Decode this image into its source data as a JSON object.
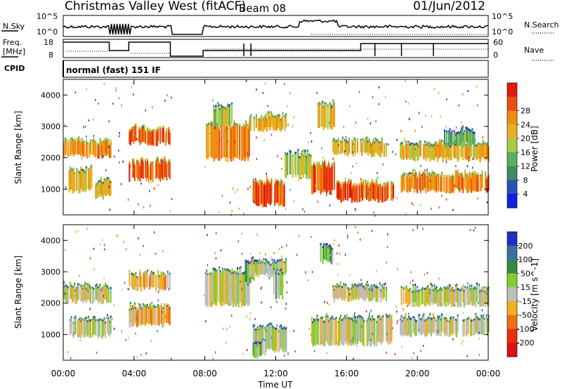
{
  "header": {
    "station": "Christmas Valley West (fitACF)",
    "beam": "Beam 08",
    "date": "01/Jun/2012"
  },
  "panels": {
    "nsky": {
      "label": "N.Sky",
      "left_ticks": [
        "10^5",
        "10^0"
      ],
      "right_label": "N.Search",
      "right_ticks": [
        "10^5",
        "10^0"
      ]
    },
    "freq": {
      "label_line1": "Freq.",
      "label_line2": "[MHz]",
      "left_ticks": [
        "18",
        "8"
      ],
      "right_label": "Nave",
      "right_ticks": [
        "60",
        "0"
      ]
    },
    "cpid": {
      "label": "CPID",
      "value": "normal (fast) 151 IF"
    }
  },
  "chart_data": [
    {
      "type": "heatmap",
      "title": "",
      "ylabel": "Slant Range [km]",
      "xlabel": "",
      "ylim": [
        180,
        4500
      ],
      "y_ticks": [
        "1000",
        "2000",
        "3000",
        "4000"
      ],
      "x_ticks": [
        "00:00",
        "04:00",
        "08:00",
        "12:00",
        "16:00",
        "20:00",
        "00:00"
      ],
      "colorbar": {
        "label": "Power [dB]",
        "ticks": [
          "4",
          "8",
          "12",
          "16",
          "20",
          "24",
          "28"
        ],
        "colors": [
          "#1020e0",
          "#2850b8",
          "#3f8a62",
          "#58b060",
          "#a8cc48",
          "#e8b020",
          "#f08c10",
          "#e85010",
          "#e21a10"
        ]
      },
      "bands": [
        {
          "t0": 0.0,
          "t1": 2.7,
          "r0": 2050,
          "r1": 2500,
          "level": 6
        },
        {
          "t0": 0.3,
          "t1": 1.6,
          "r0": 950,
          "r1": 1600,
          "level": 5
        },
        {
          "t0": 1.8,
          "t1": 2.7,
          "r0": 750,
          "r1": 1200,
          "level": 5
        },
        {
          "t0": 3.7,
          "t1": 6.0,
          "r0": 2450,
          "r1": 2900,
          "level": 7
        },
        {
          "t0": 3.7,
          "t1": 6.0,
          "r0": 1300,
          "r1": 1850,
          "level": 7
        },
        {
          "t0": 8.0,
          "t1": 10.5,
          "r0": 1950,
          "r1": 3000,
          "level": 6
        },
        {
          "t0": 8.4,
          "t1": 9.5,
          "r0": 3000,
          "r1": 3600,
          "level": 4
        },
        {
          "t0": 10.5,
          "t1": 12.6,
          "r0": 2900,
          "r1": 3300,
          "level": 5
        },
        {
          "t0": 10.7,
          "t1": 12.6,
          "r0": 500,
          "r1": 1200,
          "level": 7
        },
        {
          "t0": 12.5,
          "t1": 14.0,
          "r0": 1400,
          "r1": 2100,
          "level": 4
        },
        {
          "t0": 14.0,
          "t1": 15.3,
          "r0": 900,
          "r1": 1750,
          "level": 7
        },
        {
          "t0": 14.3,
          "t1": 15.3,
          "r0": 2950,
          "r1": 3700,
          "level": 5
        },
        {
          "t0": 15.3,
          "t1": 18.6,
          "r0": 650,
          "r1": 1150,
          "level": 7
        },
        {
          "t0": 15.2,
          "t1": 18.2,
          "r0": 2100,
          "r1": 2500,
          "level": 5
        },
        {
          "t0": 19.0,
          "t1": 24.0,
          "r0": 1950,
          "r1": 2400,
          "level": 5
        },
        {
          "t0": 19.0,
          "t1": 24.0,
          "r0": 950,
          "r1": 1450,
          "level": 6
        },
        {
          "t0": 21.5,
          "t1": 23.2,
          "r0": 2450,
          "r1": 2850,
          "level": 3
        }
      ]
    },
    {
      "type": "heatmap",
      "title": "",
      "ylabel": "Slant Range [km]",
      "xlabel": "Time UT",
      "ylim": [
        180,
        4500
      ],
      "y_ticks": [
        "1000",
        "2000",
        "3000",
        "4000"
      ],
      "x_ticks": [
        "00:00",
        "04:00",
        "08:00",
        "12:00",
        "16:00",
        "20:00",
        "00:00"
      ],
      "colorbar": {
        "label": "Velocity [m s^-1]",
        "ticks": [
          "200",
          "100",
          "50",
          "15",
          "-15",
          "-50",
          "-100",
          "-200"
        ],
        "colors": [
          "#2030c0",
          "#3c70a0",
          "#2e8a4a",
          "#88cc30",
          "#bebebe",
          "#f0b020",
          "#f07010",
          "#e83010",
          "#e01010"
        ]
      },
      "bands": [
        {
          "t0": 0.0,
          "t1": 2.7,
          "r0": 2050,
          "r1": 2500,
          "level": 4
        },
        {
          "t0": 0.3,
          "t1": 2.7,
          "r0": 950,
          "r1": 1450,
          "level": 4
        },
        {
          "t0": 3.7,
          "t1": 6.0,
          "r0": 2450,
          "r1": 2900,
          "level": 5
        },
        {
          "t0": 3.7,
          "t1": 6.0,
          "r0": 1300,
          "r1": 1850,
          "level": 5
        },
        {
          "t0": 8.0,
          "t1": 10.5,
          "r0": 1950,
          "r1": 3000,
          "level": 4
        },
        {
          "t0": 10.2,
          "t1": 10.8,
          "r0": 2700,
          "r1": 3300,
          "level": 3
        },
        {
          "t0": 10.5,
          "t1": 12.6,
          "r0": 2900,
          "r1": 3300,
          "level": 4
        },
        {
          "t0": 11.8,
          "t1": 12.4,
          "r0": 2200,
          "r1": 3000,
          "level": 3
        },
        {
          "t0": 10.7,
          "t1": 12.6,
          "r0": 500,
          "r1": 1200,
          "level": 4
        },
        {
          "t0": 10.7,
          "t1": 11.4,
          "r0": 300,
          "r1": 700,
          "level": 3
        },
        {
          "t0": 14.0,
          "t1": 18.6,
          "r0": 700,
          "r1": 1500,
          "level": 4
        },
        {
          "t0": 14.5,
          "t1": 15.2,
          "r0": 3300,
          "r1": 3800,
          "level": 3
        },
        {
          "t0": 15.2,
          "t1": 18.2,
          "r0": 2100,
          "r1": 2500,
          "level": 4
        },
        {
          "t0": 19.0,
          "t1": 24.0,
          "r0": 1950,
          "r1": 2450,
          "level": 4
        },
        {
          "t0": 19.0,
          "t1": 24.0,
          "r0": 1000,
          "r1": 1500,
          "level": 4
        }
      ]
    }
  ]
}
